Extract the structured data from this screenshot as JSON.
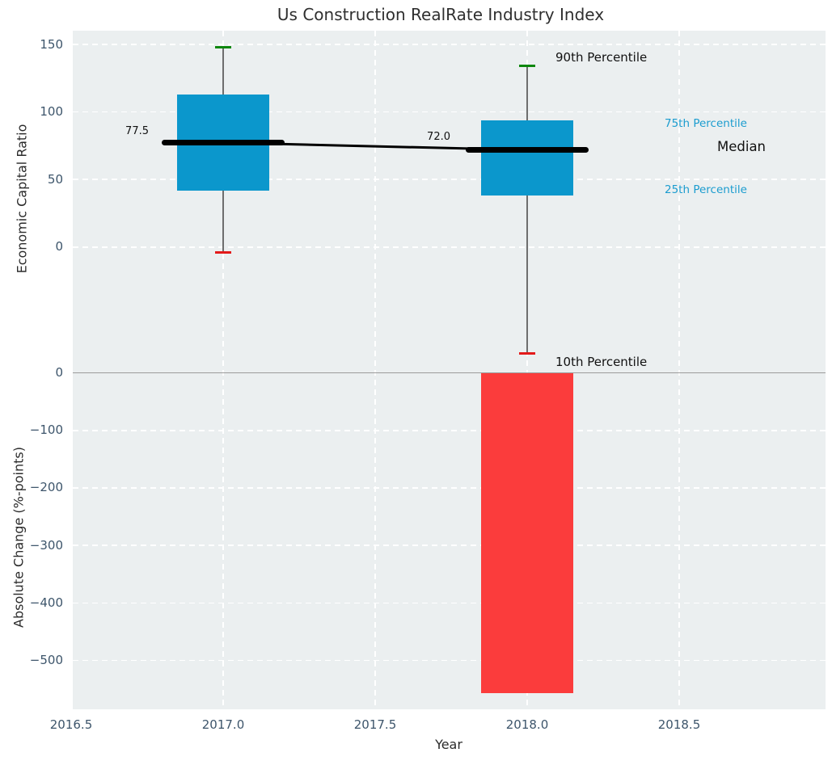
{
  "title": "Us Construction RealRate Industry Index",
  "axes": {
    "xlabel": "Year",
    "top_ylabel": "Economic Capital Ratio",
    "bottom_ylabel": "Absolute Change (%-points)",
    "xtick_labels": [
      "2016.5",
      "2017.0",
      "2017.5",
      "2018.0",
      "2018.5"
    ],
    "top_ytick_labels": [
      "150",
      "100",
      "50",
      "0"
    ],
    "bottom_ytick_labels": [
      "0",
      "−100",
      "−200",
      "−300",
      "−400",
      "−500"
    ]
  },
  "annotations": {
    "p90_label": "90th Percentile",
    "p75_label": "75th Percentile",
    "median_label": "Median",
    "p25_label": "25th Percentile",
    "p10_label": "10th Percentile",
    "median_2017": "77.5",
    "median_2018": "72.0"
  },
  "colors": {
    "box": "#0b97cc",
    "bar": "#fb3c3c",
    "whisker": "#6e6e6e",
    "whisker_cap_high": "#0e870e",
    "whisker_cap_low": "#e31a1a",
    "median": "#000000",
    "zero_line": "#9b9b9b",
    "percentile_label": "#1b9ccf",
    "plot_bg": "#ebeff0",
    "grid": "#ffffff",
    "tick": "#3d556b"
  },
  "chart_data": [
    {
      "type": "boxplot",
      "title": "Us Construction RealRate Industry Index",
      "xlabel": "Year",
      "ylabel": "Economic Capital Ratio",
      "x": [
        2017,
        2018
      ],
      "series": [
        {
          "name": "2017",
          "p10": -4,
          "p25": 42,
          "median": 77.5,
          "p75": 113,
          "p90": 148
        },
        {
          "name": "2018",
          "p10": -79,
          "p25": 38,
          "median": 72.0,
          "p75": 94,
          "p90": 134
        }
      ],
      "median_line": {
        "x": [
          2017,
          2018
        ],
        "y": [
          77.5,
          72.0
        ]
      },
      "median_labels": [
        "77.5",
        "72.0"
      ],
      "xticks": [
        2016.5,
        2017.0,
        2017.5,
        2018.0,
        2018.5
      ],
      "yticks": [
        150,
        100,
        50,
        0
      ],
      "ylim": [
        -91.1,
        160.2
      ],
      "xlim": [
        2016.5,
        2019.0
      ],
      "grid": true,
      "legend_position": "annotations-right",
      "annotations": [
        "90th Percentile",
        "75th Percentile",
        "Median",
        "25th Percentile",
        "10th Percentile"
      ]
    },
    {
      "type": "bar",
      "xlabel": "Year",
      "ylabel": "Absolute Change (%-points)",
      "x": [
        2018
      ],
      "values": [
        -557
      ],
      "bar_width_years": 0.3,
      "yticks": [
        0,
        -100,
        -200,
        -300,
        -400,
        -500
      ],
      "ylim": [
        -585,
        5
      ],
      "grid": true
    }
  ]
}
